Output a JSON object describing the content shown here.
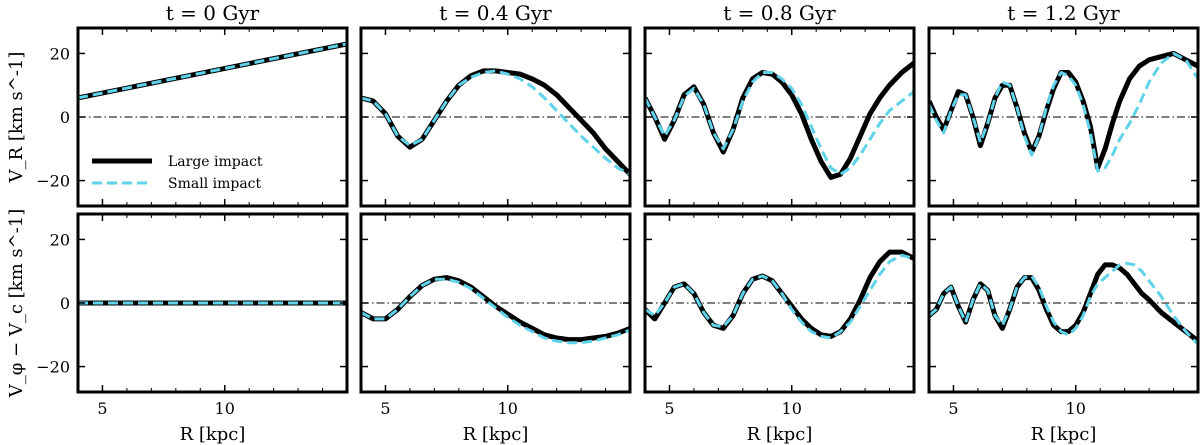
{
  "chart_data": {
    "type": "line",
    "titles": [
      "t = 0 Gyr",
      "t = 0.4 Gyr",
      "t = 0.8 Gyr",
      "t = 1.2 Gyr"
    ],
    "xlabel": "R [kpc]",
    "ylabels": [
      "V_R [km s^-1]",
      "V_φ − V_c [km s^-1]"
    ],
    "xlim": [
      4,
      15
    ],
    "ylim": [
      -28,
      28
    ],
    "xticks": [
      5,
      10
    ],
    "yticks": [
      -20,
      0,
      20
    ],
    "legend": {
      "position": "lower-left",
      "entries": [
        {
          "name": "Large impact",
          "color": "#000000",
          "style": "solid"
        },
        {
          "name": "Small impact",
          "color": "#5fd3e9",
          "style": "dashed"
        }
      ]
    },
    "panels": [
      {
        "row": 0,
        "col": 0,
        "series": [
          {
            "name": "Large impact",
            "x": [
              4,
              15
            ],
            "y": [
              6,
              23
            ]
          },
          {
            "name": "Small impact",
            "x": [
              4,
              15
            ],
            "y": [
              6,
              23
            ]
          }
        ]
      },
      {
        "row": 0,
        "col": 1,
        "series": [
          {
            "name": "Large impact",
            "x": [
              4,
              4.5,
              5,
              5.5,
              6,
              6.5,
              7,
              7.5,
              8,
              8.5,
              9,
              9.5,
              10,
              10.5,
              11,
              11.5,
              12,
              12.5,
              13,
              13.5,
              14,
              14.5,
              15
            ],
            "y": [
              6,
              5,
              1,
              -6,
              -9.5,
              -7,
              -1,
              5,
              10,
              13,
              14.5,
              14.5,
              14,
              13.5,
              12,
              10,
              7,
              3,
              -1,
              -5,
              -10,
              -14,
              -18
            ]
          },
          {
            "name": "Small impact",
            "x": [
              4,
              4.5,
              5,
              5.5,
              6,
              6.5,
              7,
              7.5,
              8,
              8.5,
              9,
              9.5,
              10,
              10.5,
              11,
              11.5,
              12,
              12.5,
              13,
              13.5,
              14,
              14.5,
              15
            ],
            "y": [
              6,
              5,
              1,
              -6,
              -9,
              -7,
              -1,
              5,
              10,
              12.5,
              14,
              14.5,
              13.5,
              12,
              9.5,
              6,
              2,
              -2,
              -6,
              -9.5,
              -13,
              -16,
              -18
            ]
          }
        ]
      },
      {
        "row": 0,
        "col": 2,
        "series": [
          {
            "name": "Large impact",
            "x": [
              4,
              4.4,
              4.8,
              5.2,
              5.6,
              6,
              6.4,
              6.8,
              7.2,
              7.6,
              8,
              8.4,
              8.8,
              9.2,
              9.6,
              10,
              10.4,
              10.8,
              11.2,
              11.6,
              12,
              12.4,
              12.8,
              13.2,
              13.6,
              14,
              14.5,
              15
            ],
            "y": [
              6,
              0,
              -7,
              -1,
              7,
              9.5,
              4,
              -5,
              -11,
              -4,
              6,
              12,
              14,
              13.5,
              11,
              7,
              1,
              -7,
              -14,
              -19,
              -18,
              -13,
              -6,
              1,
              6,
              10,
              14,
              17
            ]
          },
          {
            "name": "Small impact",
            "x": [
              4,
              4.4,
              4.8,
              5.2,
              5.6,
              6,
              6.4,
              6.8,
              7.2,
              7.6,
              8,
              8.4,
              8.8,
              9.2,
              9.6,
              10,
              10.4,
              10.8,
              11.2,
              11.6,
              12,
              12.4,
              12.8,
              13.2,
              13.6,
              14,
              14.5,
              15
            ],
            "y": [
              6,
              0,
              -6,
              -1,
              6.5,
              9,
              4,
              -5,
              -10,
              -4,
              5,
              11,
              14,
              14,
              12,
              9,
              4,
              -3,
              -10,
              -16,
              -18,
              -16,
              -12,
              -7,
              -2,
              2,
              5,
              8
            ]
          }
        ]
      },
      {
        "row": 0,
        "col": 3,
        "series": [
          {
            "name": "Large impact",
            "x": [
              4,
              4.3,
              4.6,
              4.9,
              5.2,
              5.5,
              5.8,
              6.1,
              6.4,
              6.7,
              7,
              7.3,
              7.6,
              7.9,
              8.2,
              8.5,
              8.8,
              9.1,
              9.4,
              9.7,
              10,
              10.3,
              10.6,
              10.9,
              11.2,
              11.5,
              11.8,
              12.2,
              12.6,
              13,
              13.5,
              14,
              14.5,
              15
            ],
            "y": [
              5,
              0,
              -4,
              2,
              8,
              7,
              0,
              -9,
              -2,
              6,
              10,
              10,
              3,
              -5,
              -11,
              -6,
              2,
              9,
              14,
              14,
              11,
              5,
              -3,
              -16,
              -10,
              -2,
              5,
              12,
              16,
              18,
              19,
              20,
              18,
              16
            ]
          },
          {
            "name": "Small impact",
            "x": [
              4,
              4.3,
              4.6,
              4.9,
              5.2,
              5.5,
              5.8,
              6.1,
              6.4,
              6.7,
              7,
              7.3,
              7.6,
              7.9,
              8.2,
              8.5,
              8.8,
              9.1,
              9.4,
              9.7,
              10,
              10.3,
              10.6,
              10.9,
              11.2,
              11.5,
              11.8,
              12.2,
              12.6,
              13,
              13.5,
              14,
              14.5,
              15
            ],
            "y": [
              4,
              -1,
              -5,
              2,
              7,
              7,
              0,
              -8,
              -2,
              6,
              11,
              10,
              3,
              -6,
              -12,
              -6,
              3,
              10,
              14,
              13,
              10,
              4,
              -5,
              -17,
              -16,
              -12,
              -7,
              -2,
              4,
              11,
              17,
              20,
              18,
              12
            ]
          }
        ]
      },
      {
        "row": 1,
        "col": 0,
        "series": [
          {
            "name": "Large impact",
            "x": [
              4,
              15
            ],
            "y": [
              0,
              0
            ]
          },
          {
            "name": "Small impact",
            "x": [
              4,
              15
            ],
            "y": [
              0,
              0
            ]
          }
        ]
      },
      {
        "row": 1,
        "col": 1,
        "series": [
          {
            "name": "Large impact",
            "x": [
              4,
              4.5,
              5,
              5.5,
              6,
              6.5,
              7,
              7.5,
              8,
              8.5,
              9,
              9.5,
              10,
              10.5,
              11,
              11.5,
              12,
              12.5,
              13,
              13.5,
              14,
              14.5,
              15
            ],
            "y": [
              -3,
              -5,
              -5,
              -2,
              2,
              5.5,
              7.5,
              8,
              7,
              5,
              2,
              -1,
              -3.5,
              -6,
              -8,
              -10,
              -11,
              -11.5,
              -11.5,
              -11,
              -10.5,
              -9.5,
              -8
            ]
          },
          {
            "name": "Small impact",
            "x": [
              4,
              4.5,
              5,
              5.5,
              6,
              6.5,
              7,
              7.5,
              8,
              8.5,
              9,
              9.5,
              10,
              10.5,
              11,
              11.5,
              12,
              12.5,
              13,
              13.5,
              14,
              14.5,
              15
            ],
            "y": [
              -3,
              -5,
              -5,
              -2,
              2,
              5.5,
              7.5,
              7.5,
              6.5,
              4.5,
              1.5,
              -1.5,
              -4.5,
              -7,
              -9,
              -11,
              -12,
              -12.5,
              -12.5,
              -12,
              -11,
              -10,
              -8.5
            ]
          }
        ]
      },
      {
        "row": 1,
        "col": 2,
        "series": [
          {
            "name": "Large impact",
            "x": [
              4,
              4.4,
              4.8,
              5.2,
              5.6,
              6,
              6.4,
              6.8,
              7.2,
              7.6,
              8,
              8.4,
              8.8,
              9.2,
              9.6,
              10,
              10.4,
              10.8,
              11.2,
              11.6,
              12,
              12.4,
              12.8,
              13.2,
              13.6,
              14,
              14.5,
              15
            ],
            "y": [
              -2,
              -5,
              0,
              5,
              6,
              3,
              -3,
              -7,
              -8,
              -4,
              3,
              7.5,
              8.5,
              7,
              3,
              -1,
              -5,
              -8,
              -10,
              -10.5,
              -9,
              -5,
              1,
              8,
              13,
              16,
              16,
              14
            ]
          },
          {
            "name": "Small impact",
            "x": [
              4,
              4.4,
              4.8,
              5.2,
              5.6,
              6,
              6.4,
              6.8,
              7.2,
              7.6,
              8,
              8.4,
              8.8,
              9.2,
              9.6,
              10,
              10.4,
              10.8,
              11.2,
              11.6,
              12,
              12.4,
              12.8,
              13.2,
              13.6,
              14,
              14.5,
              15
            ],
            "y": [
              -2,
              -4,
              0,
              5,
              6,
              3,
              -3,
              -7,
              -7.5,
              -4,
              3,
              7.5,
              8.5,
              7,
              3,
              -2,
              -6,
              -9,
              -10.5,
              -11,
              -9,
              -6,
              -1,
              4,
              9,
              13,
              15,
              14
            ]
          }
        ]
      },
      {
        "row": 1,
        "col": 3,
        "series": [
          {
            "name": "Large impact",
            "x": [
              4,
              4.3,
              4.6,
              4.9,
              5.2,
              5.5,
              5.8,
              6.1,
              6.4,
              6.7,
              7,
              7.3,
              7.6,
              7.9,
              8.2,
              8.5,
              8.8,
              9.1,
              9.4,
              9.7,
              10,
              10.3,
              10.6,
              10.9,
              11.2,
              11.5,
              11.8,
              12.1,
              12.4,
              12.7,
              13,
              13.5,
              14,
              14.5,
              15
            ],
            "y": [
              -4,
              -2,
              3,
              5,
              -1,
              -6,
              1,
              6,
              4,
              -4,
              -8,
              -2,
              5,
              8,
              8,
              4,
              -2,
              -7,
              -9,
              -9,
              -7,
              -3,
              3,
              9,
              12,
              12,
              11,
              9,
              6,
              3,
              1,
              -3,
              -6,
              -9,
              -12
            ]
          },
          {
            "name": "Small impact",
            "x": [
              4,
              4.3,
              4.6,
              4.9,
              5.2,
              5.5,
              5.8,
              6.1,
              6.4,
              6.7,
              7,
              7.3,
              7.6,
              7.9,
              8.2,
              8.5,
              8.8,
              9.1,
              9.4,
              9.7,
              10,
              10.3,
              10.6,
              10.9,
              11.2,
              11.5,
              11.8,
              12.1,
              12.4,
              12.7,
              13,
              13.5,
              14,
              14.5,
              15
            ],
            "y": [
              -4,
              -2,
              3,
              5,
              -1,
              -6,
              1,
              6,
              4,
              -4,
              -7,
              -2,
              5,
              8,
              8.5,
              5,
              -1,
              -6,
              -9,
              -10,
              -8,
              -4,
              2,
              6,
              8,
              10,
              12,
              12.5,
              12,
              10,
              7,
              2,
              -4,
              -9,
              -13
            ]
          }
        ]
      }
    ]
  }
}
